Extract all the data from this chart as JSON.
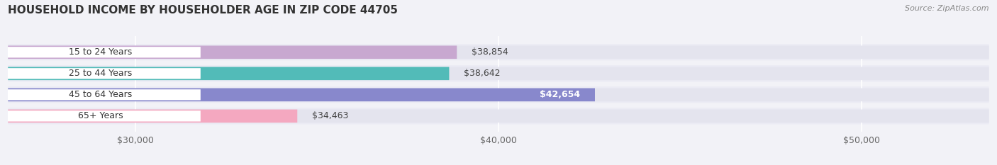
{
  "title": "HOUSEHOLD INCOME BY HOUSEHOLDER AGE IN ZIP CODE 44705",
  "source": "Source: ZipAtlas.com",
  "categories": [
    "15 to 24 Years",
    "25 to 44 Years",
    "45 to 64 Years",
    "65+ Years"
  ],
  "values": [
    38854,
    38642,
    42654,
    34463
  ],
  "bar_colors": [
    "#c8a8d0",
    "#52bbb8",
    "#8888cc",
    "#f4a8c0"
  ],
  "bar_labels": [
    "$38,854",
    "$38,642",
    "$42,654",
    "$34,463"
  ],
  "label_inside": [
    false,
    false,
    true,
    false
  ],
  "xlim_min": 26500,
  "xlim_max": 53500,
  "xticks": [
    30000,
    40000,
    50000
  ],
  "xtick_labels": [
    "$30,000",
    "$40,000",
    "$50,000"
  ],
  "background_color": "#f2f2f7",
  "bar_background_color": "#e4e4ee",
  "row_background_color": "#ebebf4",
  "title_fontsize": 11,
  "source_fontsize": 8,
  "label_fontsize": 9,
  "tick_fontsize": 9,
  "category_fontsize": 9
}
